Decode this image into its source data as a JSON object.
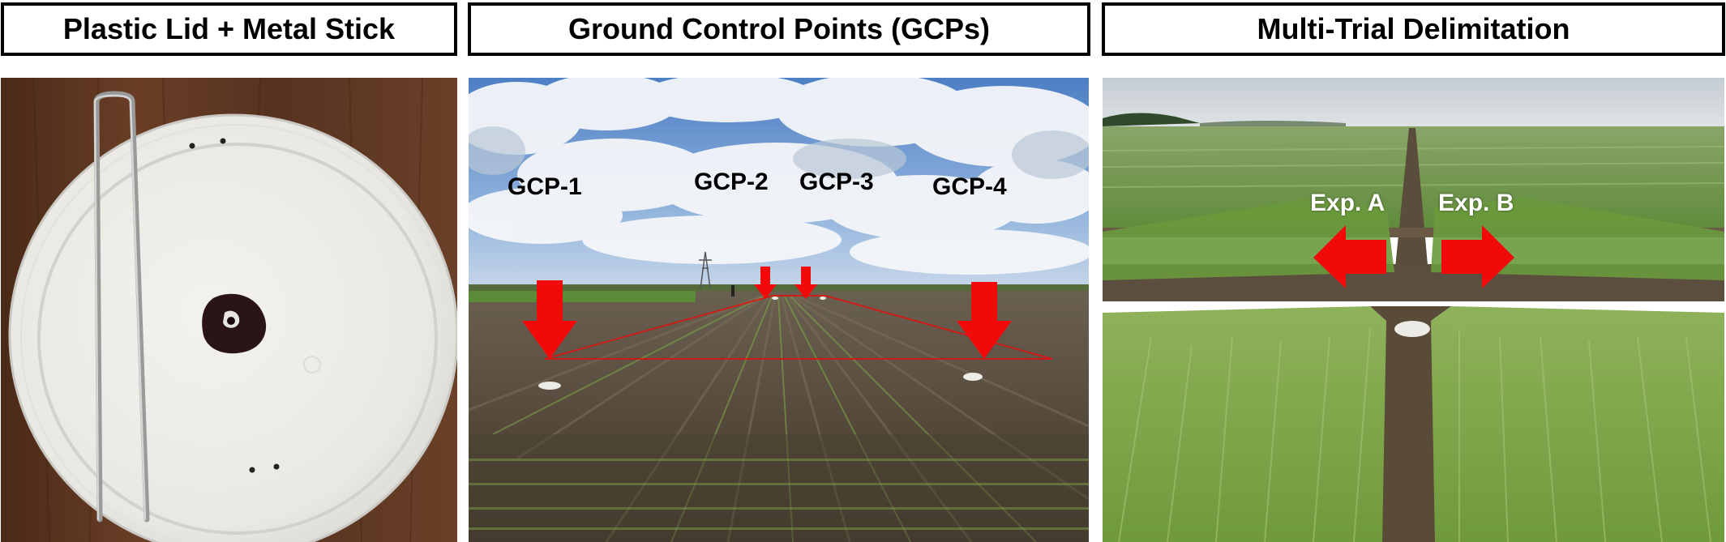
{
  "panels": [
    {
      "title": "Plastic Lid + Metal Stick"
    },
    {
      "title": "Ground Control Points (GCPs)",
      "labels": [
        "GCP-1",
        "GCP-2",
        "GCP-3",
        "GCP-4"
      ]
    },
    {
      "title": "Multi-Trial Delimitation",
      "labels": [
        "Exp. A",
        "Exp. B"
      ]
    }
  ],
  "colors": {
    "arrow": "#f20a0a",
    "outline": "#e01010",
    "wood": "#5a3420",
    "lid": "#ecebe6",
    "sky": "#7fa6d6",
    "soil": "#514638",
    "wheat": "#7ea14c"
  }
}
